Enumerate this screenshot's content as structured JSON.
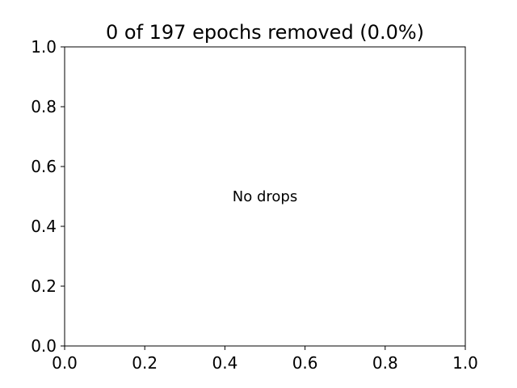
{
  "chart_data": {
    "type": "scatter",
    "title": "0 of 197 epochs removed (0.0%)",
    "xlabel": "",
    "ylabel": "",
    "xlim": [
      0.0,
      1.0
    ],
    "ylim": [
      0.0,
      1.0
    ],
    "xticks": [
      0.0,
      0.2,
      0.4,
      0.6,
      0.8,
      1.0
    ],
    "xtick_labels": [
      "0.0",
      "0.2",
      "0.4",
      "0.6",
      "0.8",
      "1.0"
    ],
    "yticks": [
      0.0,
      0.2,
      0.4,
      0.6,
      0.8,
      1.0
    ],
    "ytick_labels": [
      "0.0",
      "0.2",
      "0.4",
      "0.6",
      "0.8",
      "1.0"
    ],
    "grid": false,
    "series": [],
    "annotations": [
      {
        "text": "No drops",
        "x": 0.5,
        "y": 0.5
      }
    ]
  }
}
